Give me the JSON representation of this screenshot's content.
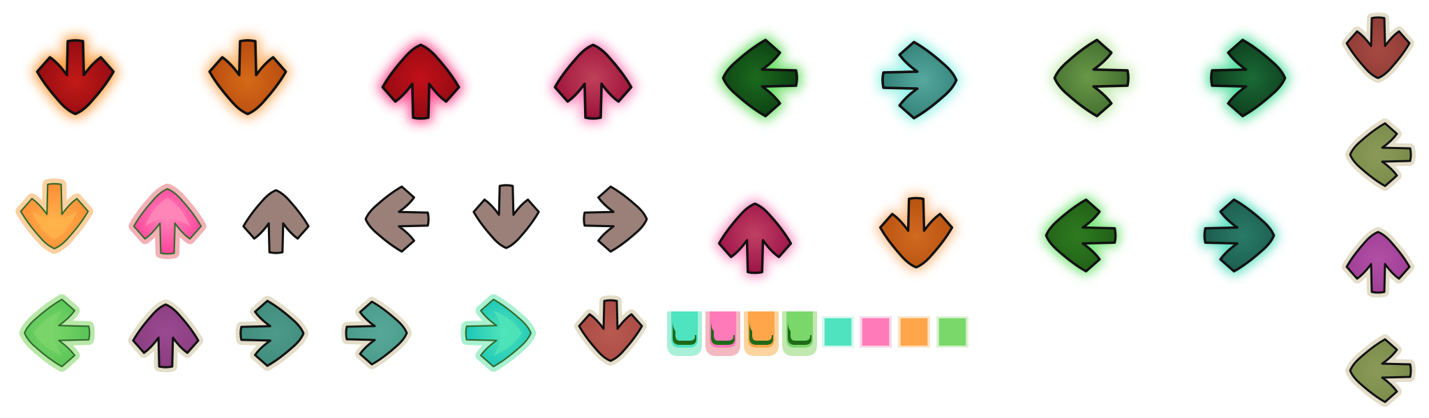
{
  "sheet": {
    "background": "#ffffff",
    "outline": "#111111"
  },
  "arrows": [
    {
      "name": "arrow-down-red-glow",
      "dir": "down",
      "fill": "#8f0a12",
      "fill2": "#c21a16",
      "glow": "#ff8a1a",
      "style": "glow",
      "outlined": true
    },
    {
      "name": "arrow-down-orange-glow",
      "dir": "down",
      "fill": "#b5480f",
      "fill2": "#d46a18",
      "glow": "#ffa24a",
      "style": "glow",
      "outlined": true
    },
    {
      "name": "arrow-up-red-glow",
      "dir": "up",
      "fill": "#8f0a12",
      "fill2": "#c2101a",
      "glow": "#ff2a78",
      "style": "glow",
      "outlined": true
    },
    {
      "name": "arrow-up-crimson-glow",
      "dir": "up",
      "fill": "#9a0f38",
      "fill2": "#c0405a",
      "glow": "#ff6fb0",
      "style": "glow",
      "outlined": true
    },
    {
      "name": "arrow-left-darkgreen-glow",
      "dir": "left",
      "fill": "#0b3d12",
      "fill2": "#1c6a1e",
      "glow": "#4fd84a",
      "style": "glow",
      "outlined": true
    },
    {
      "name": "arrow-right-teal-glow",
      "dir": "right",
      "fill": "#2f7d74",
      "fill2": "#55a89e",
      "glow": "#7ff0e2",
      "style": "glow",
      "outlined": true
    },
    {
      "name": "arrow-left-olive-glow",
      "dir": "left",
      "fill": "#3f6b2c",
      "fill2": "#6a9848",
      "glow": "#b8e7a0",
      "style": "glow",
      "outlined": true
    },
    {
      "name": "arrow-right-darkgreen-glow",
      "dir": "right",
      "fill": "#0d3a1c",
      "fill2": "#1a6a35",
      "glow": "#31d98c",
      "style": "glow",
      "outlined": true
    },
    {
      "name": "arrow-down-brick-plate",
      "dir": "down",
      "fill": "#8e3a35",
      "fill2": "#a54a42",
      "glow": "#e3ddc9",
      "style": "plate",
      "outlined": true
    },
    {
      "name": "arrow-down-orange-light",
      "dir": "down",
      "fill": "#ff8a35",
      "fill2": "#ffb14a",
      "glow": "#fbd0a0",
      "style": "light",
      "outlined": true
    },
    {
      "name": "arrow-up-pink-light",
      "dir": "up",
      "fill": "#ff3d9a",
      "fill2": "#ff86b8",
      "glow": "#f3b0b6",
      "style": "light",
      "outlined": true
    },
    {
      "name": "arrow-up-taupe",
      "dir": "up",
      "fill": "#9a8079",
      "fill2": "#9a8079",
      "glow": "#ffffff",
      "style": "flat",
      "outlined": true
    },
    {
      "name": "arrow-left-taupe",
      "dir": "left",
      "fill": "#9a8079",
      "fill2": "#9a8079",
      "glow": "#ffffff",
      "style": "flat",
      "outlined": true
    },
    {
      "name": "arrow-down-taupe",
      "dir": "down",
      "fill": "#9a8079",
      "fill2": "#9a8079",
      "glow": "#ffffff",
      "style": "flat",
      "outlined": true
    },
    {
      "name": "arrow-right-taupe",
      "dir": "right",
      "fill": "#9a8079",
      "fill2": "#9a8079",
      "glow": "#ffffff",
      "style": "flat",
      "outlined": true
    },
    {
      "name": "arrow-up-crimson-glow-small",
      "dir": "up",
      "fill": "#9a0f45",
      "fill2": "#c04065",
      "glow": "#ff7ab5",
      "style": "glow",
      "outlined": true
    },
    {
      "name": "arrow-down-orange-glow-small",
      "dir": "down",
      "fill": "#b5500f",
      "fill2": "#d06a20",
      "glow": "#ffb070",
      "style": "glow",
      "outlined": true
    },
    {
      "name": "arrow-left-green-glow",
      "dir": "left",
      "fill": "#1f5e16",
      "fill2": "#2f7a20",
      "glow": "#5fe060",
      "style": "glow",
      "outlined": true
    },
    {
      "name": "arrow-right-teal-dark-glow",
      "dir": "right",
      "fill": "#1a5a4c",
      "fill2": "#2a7a66",
      "glow": "#3fd9b8",
      "style": "glow",
      "outlined": true
    },
    {
      "name": "arrow-left-olive-plate",
      "dir": "left",
      "fill": "#7a8a4a",
      "fill2": "#8b9a58",
      "glow": "#e3ddc9",
      "style": "plate",
      "outlined": true
    },
    {
      "name": "arrow-left-green-light",
      "dir": "left",
      "fill": "#55c455",
      "fill2": "#7ad46a",
      "glow": "#b8e8a8",
      "style": "light",
      "outlined": true
    },
    {
      "name": "arrow-up-purple-plate",
      "dir": "up",
      "fill": "#8a3c80",
      "fill2": "#9a4a90",
      "glow": "#e3ddc9",
      "style": "plate",
      "outlined": true
    },
    {
      "name": "arrow-right-teal-plate",
      "dir": "right",
      "fill": "#3f8a7c",
      "fill2": "#4d9a8a",
      "glow": "#e3ddc9",
      "style": "plate",
      "outlined": true
    },
    {
      "name": "arrow-right-teal-plate-small",
      "dir": "right",
      "fill": "#4a9a8a",
      "fill2": "#56a898",
      "glow": "#e3ddc9",
      "style": "plate",
      "outlined": true
    },
    {
      "name": "arrow-right-cyan-light",
      "dir": "right",
      "fill": "#17c4b8",
      "fill2": "#4fe3b8",
      "glow": "#a8f0d0",
      "style": "light",
      "outlined": true
    },
    {
      "name": "arrow-down-brick-plate-2",
      "dir": "down",
      "fill": "#a84a44",
      "fill2": "#b85a50",
      "glow": "#e3ddc9",
      "style": "plate",
      "outlined": true
    },
    {
      "name": "arrow-up-magenta-plate",
      "dir": "up",
      "fill": "#a03c96",
      "fill2": "#b050a4",
      "glow": "#e3ddc9",
      "style": "plate",
      "outlined": true
    },
    {
      "name": "arrow-left-olive-plate-2",
      "dir": "left",
      "fill": "#7a8a4a",
      "fill2": "#8b9a58",
      "glow": "#e3ddc9",
      "style": "plate",
      "outlined": true
    }
  ],
  "hold_tabs": [
    {
      "name": "hold-cap-teal",
      "fill": "#4fe3c0",
      "border": "#a8f0d8",
      "capped": true
    },
    {
      "name": "hold-cap-pink",
      "fill": "#ff7ab8",
      "border": "#f3b8c0",
      "capped": true
    },
    {
      "name": "hold-cap-orange",
      "fill": "#ffa64a",
      "border": "#fbd4a0",
      "capped": true
    },
    {
      "name": "hold-cap-green",
      "fill": "#7ad86a",
      "border": "#c0e8b0",
      "capped": true
    },
    {
      "name": "hold-body-teal",
      "fill": "#4fe3c0",
      "border": "#d8f8ee",
      "capped": false
    },
    {
      "name": "hold-body-pink",
      "fill": "#ff7ab8",
      "border": "#fbd8e6",
      "capped": false
    },
    {
      "name": "hold-body-orange",
      "fill": "#ffa64a",
      "border": "#fde4c8",
      "capped": false
    },
    {
      "name": "hold-body-green",
      "fill": "#7ad86a",
      "border": "#dcf2d4",
      "capped": false
    }
  ]
}
